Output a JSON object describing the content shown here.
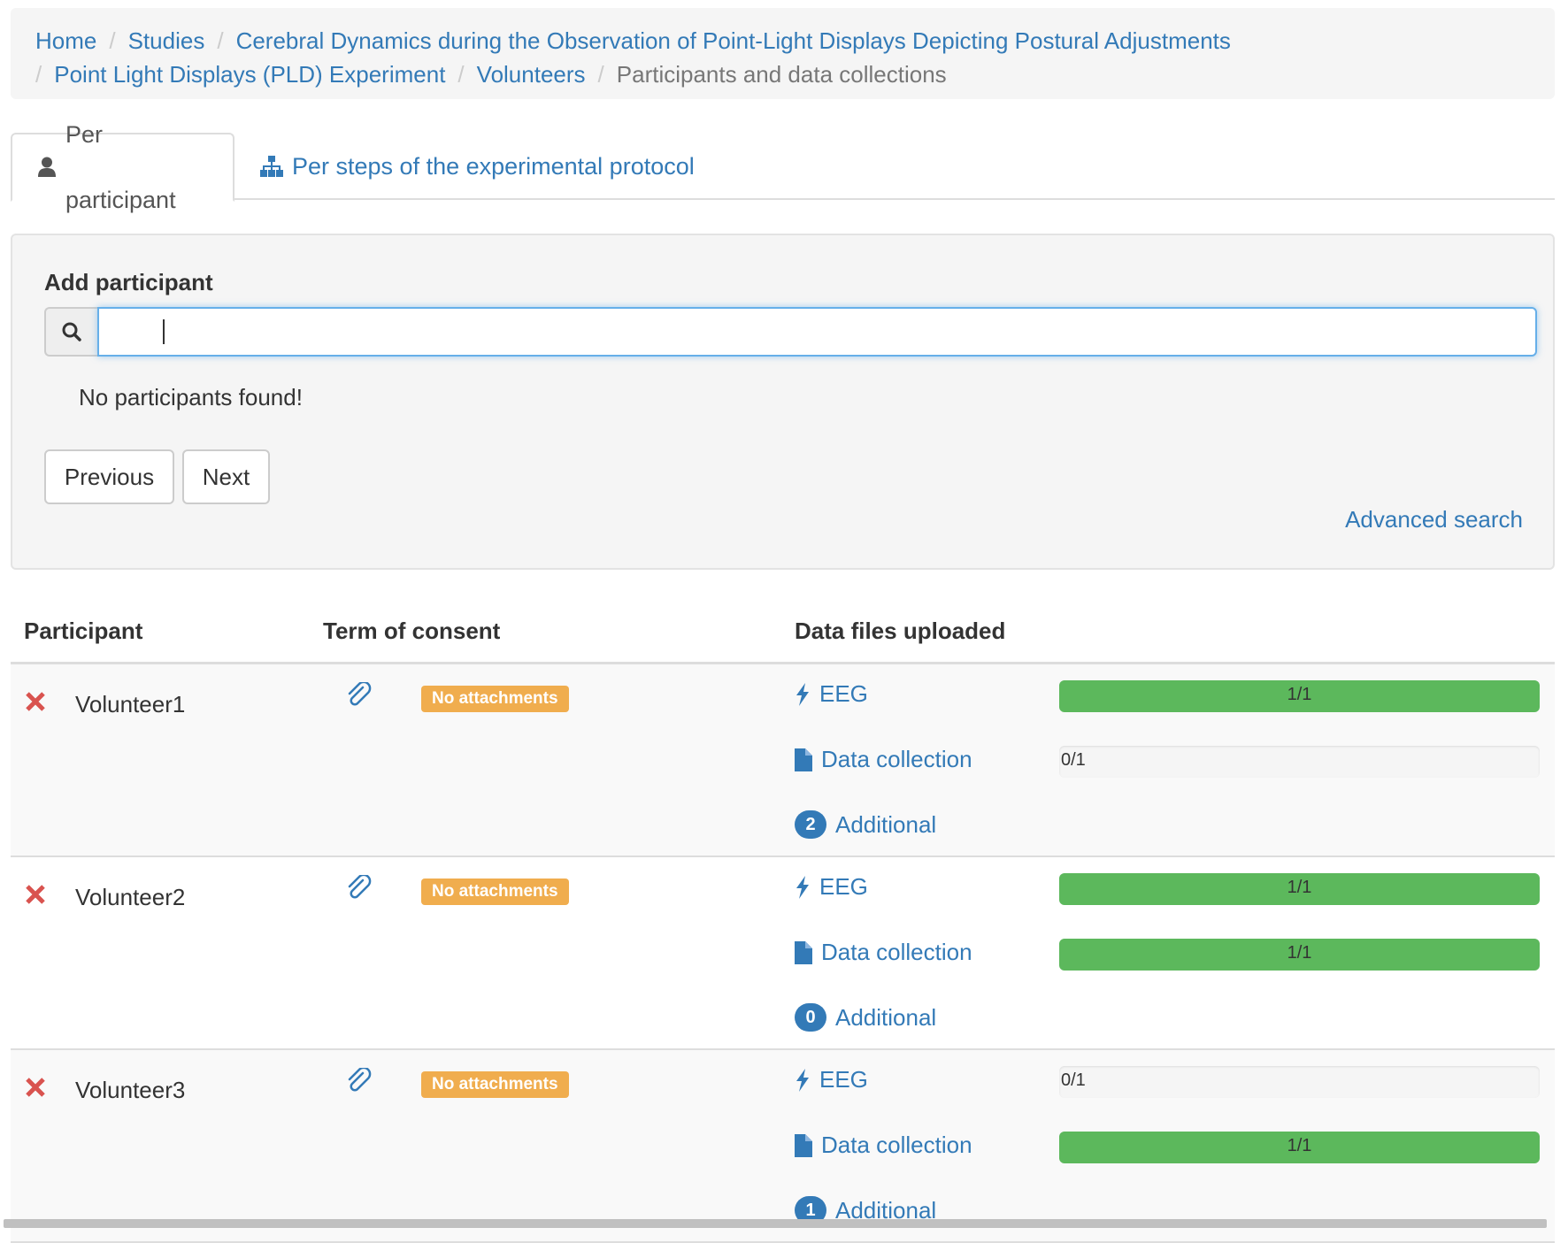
{
  "breadcrumb": {
    "items": [
      {
        "label": "Home"
      },
      {
        "label": "Studies"
      },
      {
        "label": "Cerebral Dynamics during the Observation of Point-Light Displays Depicting Postural Adjustments"
      },
      {
        "label": "Point Light Displays (PLD) Experiment"
      },
      {
        "label": "Volunteers"
      }
    ],
    "current": "Participants and data collections"
  },
  "tabs": [
    {
      "label": "Per participant",
      "icon": "user-icon",
      "active": true
    },
    {
      "label": "Per steps of the experimental protocol",
      "icon": "sitemap-icon",
      "active": false
    }
  ],
  "search_panel": {
    "title": "Add participant",
    "input_value": "",
    "no_results": "No participants found!",
    "previous_label": "Previous",
    "next_label": "Next",
    "advanced_search_label": "Advanced search"
  },
  "table": {
    "headers": {
      "participant": "Participant",
      "consent": "Term of consent",
      "files": "Data files uploaded"
    },
    "rows": [
      {
        "name": "Volunteer1",
        "consent_label": "No attachments",
        "eeg_label": "EEG",
        "eeg_progress": "1/1",
        "eeg_fraction": 1,
        "dc_label": "Data collection",
        "dc_progress": "0/1",
        "dc_fraction": 0,
        "additional_count": "2",
        "additional_label": "Additional"
      },
      {
        "name": "Volunteer2",
        "consent_label": "No attachments",
        "eeg_label": "EEG",
        "eeg_progress": "1/1",
        "eeg_fraction": 1,
        "dc_label": "Data collection",
        "dc_progress": "1/1",
        "dc_fraction": 1,
        "additional_count": "0",
        "additional_label": "Additional"
      },
      {
        "name": "Volunteer3",
        "consent_label": "No attachments",
        "eeg_label": "EEG",
        "eeg_progress": "0/1",
        "eeg_fraction": 0,
        "dc_label": "Data collection",
        "dc_progress": "1/1",
        "dc_fraction": 1,
        "additional_count": "1",
        "additional_label": "Additional"
      }
    ]
  },
  "colors": {
    "link": "#337ab7",
    "success": "#5cb85c",
    "warning": "#f0ad4e",
    "danger": "#d9534f"
  }
}
